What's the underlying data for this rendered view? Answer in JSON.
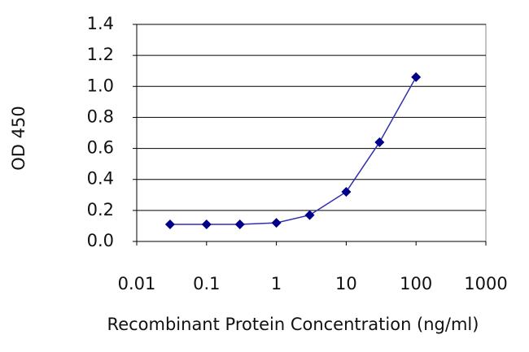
{
  "chart_data": {
    "type": "line",
    "x_label": "Recombinant Protein Concentration (ng/ml)",
    "y_label": "OD 450",
    "x": [
      0.03,
      0.1,
      0.3,
      1,
      3,
      10,
      30,
      100
    ],
    "values": [
      0.11,
      0.11,
      0.11,
      0.12,
      0.17,
      0.32,
      0.64,
      1.06
    ],
    "color": "#00008b",
    "x_log": true,
    "xlim": [
      0.01,
      1000
    ],
    "xticks": [
      0.01,
      0.1,
      1,
      10,
      100,
      1000
    ],
    "ylim": [
      0,
      1.4
    ],
    "yticks": [
      {
        "value": 0,
        "label": "0.0"
      },
      0.2,
      0.4,
      0.6,
      0.8,
      {
        "value": 1,
        "label": "1.0"
      },
      1.2,
      1.4
    ],
    "grid": true
  }
}
